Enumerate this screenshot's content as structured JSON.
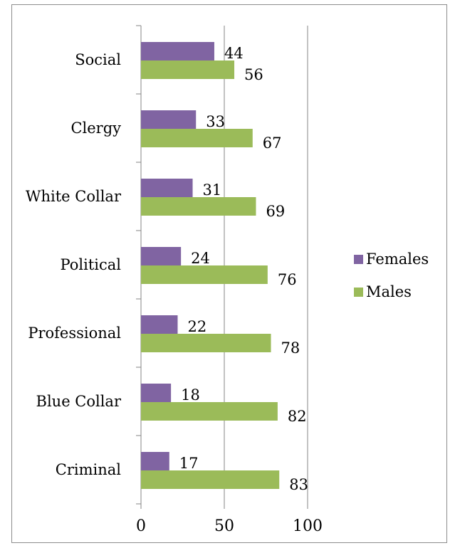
{
  "chart_data": {
    "type": "bar",
    "orientation": "horizontal",
    "categories": [
      "Social",
      "Clergy",
      "White Collar",
      "Political",
      "Professional",
      "Blue Collar",
      "Criminal"
    ],
    "series": [
      {
        "name": "Females",
        "color": "#8064a2",
        "values": [
          44,
          33,
          31,
          24,
          22,
          18,
          17
        ]
      },
      {
        "name": "Males",
        "color": "#9bbb59",
        "values": [
          56,
          67,
          69,
          76,
          78,
          82,
          83
        ]
      }
    ],
    "xlim": [
      0,
      100
    ],
    "xticks": [
      "0",
      "50",
      "100"
    ],
    "grid": "vertical major gridlines",
    "legend": "right",
    "data_labels": true,
    "title": "",
    "xlabel": "",
    "ylabel": ""
  }
}
